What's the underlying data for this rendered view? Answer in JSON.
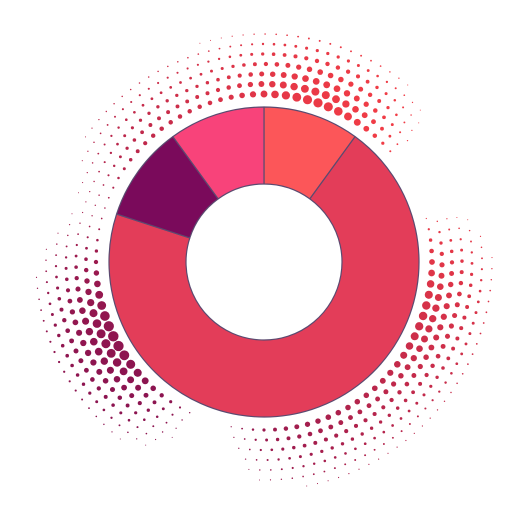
{
  "chart_data": {
    "type": "donut",
    "values": [
      10,
      70,
      10,
      10
    ],
    "colors": [
      "#fc5659",
      "#e33d59",
      "#7a0a5b",
      "#f8437a"
    ]
  }
}
